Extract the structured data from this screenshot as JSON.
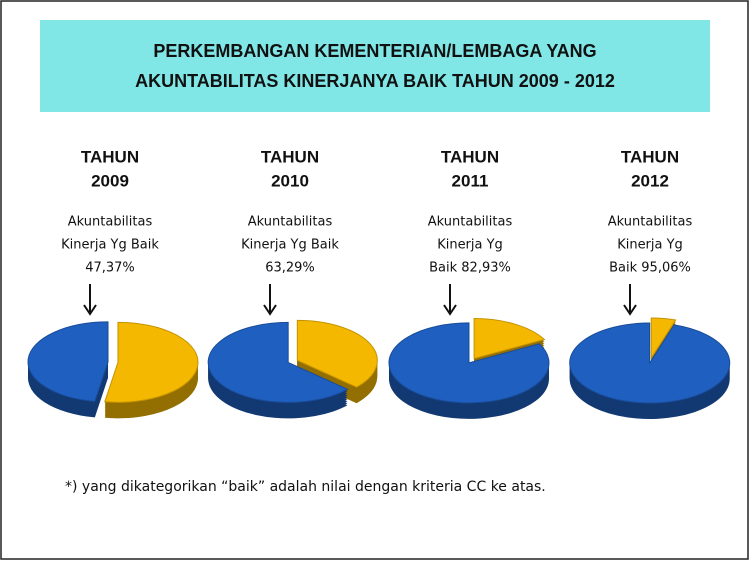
{
  "title": [
    "PERKEMBANGAN KEMENTERIAN/LEMBAGA YANG",
    "AKUNTABILITAS KINERJANYA BAIK TAHUN 2009 - 2012"
  ],
  "chart_data": [
    {
      "type": "pie",
      "title": [
        "TAHUN",
        "2009"
      ],
      "annotation": [
        "Akuntabilitas",
        "Kinerja Yg Baik"
      ],
      "values": [
        47.37,
        52.63
      ],
      "value_labels": [
        "47,37%",
        null
      ],
      "colors": [
        "#1f5fbf",
        "#f5b800"
      ]
    },
    {
      "type": "pie",
      "title": [
        "TAHUN",
        "2010"
      ],
      "annotation": [
        "Akuntabilitas",
        "Kinerja Yg Baik"
      ],
      "values": [
        63.29,
        36.71
      ],
      "value_labels": [
        "63,29%",
        null
      ],
      "colors": [
        "#1f5fbf",
        "#f5b800"
      ]
    },
    {
      "type": "pie",
      "title": [
        "TAHUN",
        "2011"
      ],
      "annotation": [
        "Akuntabilitas",
        "Kinerja Yg"
      ],
      "values": [
        82.93,
        17.07
      ],
      "value_labels": [
        "Baik 82,93%",
        null
      ],
      "colors": [
        "#1f5fbf",
        "#f5b800"
      ]
    },
    {
      "type": "pie",
      "title": [
        "TAHUN",
        "2012"
      ],
      "annotation": [
        "Akuntabilitas",
        "Kinerja Yg"
      ],
      "values": [
        95.06,
        4.94
      ],
      "value_labels": [
        "Baik 95,06%",
        null
      ],
      "colors": [
        "#1f5fbf",
        "#f5b800"
      ]
    }
  ],
  "footnote": "*) yang dikategorikan “baik” adalah nilai dengan kriteria CC ke atas."
}
